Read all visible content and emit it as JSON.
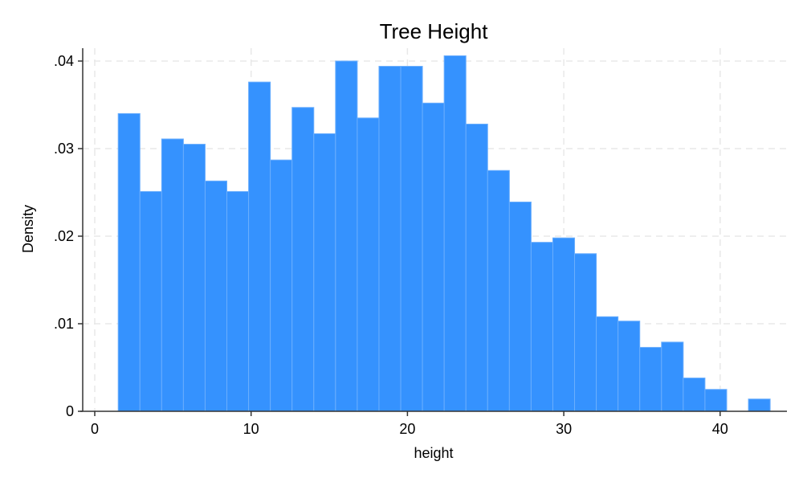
{
  "chart_data": {
    "type": "bar",
    "title": "Tree Height",
    "xlabel": "height",
    "ylabel": "Density",
    "xlim": [
      -0.7,
      44.3
    ],
    "ylim": [
      0,
      0.0415
    ],
    "xticks": [
      0,
      10,
      20,
      30,
      40
    ],
    "xtick_labels": [
      "0",
      "10",
      "20",
      "30",
      "40"
    ],
    "yticks": [
      0,
      0.01,
      0.02,
      0.03,
      0.04
    ],
    "ytick_labels": [
      "0",
      ".01",
      ".02",
      ".03",
      ".04"
    ],
    "grid": true,
    "bin_start": 1.5,
    "bin_width": 1.39,
    "values": [
      0.034,
      0.0251,
      0.0311,
      0.0305,
      0.0263,
      0.0251,
      0.0376,
      0.0287,
      0.0347,
      0.0317,
      0.04,
      0.0335,
      0.0394,
      0.0394,
      0.0352,
      0.0406,
      0.0328,
      0.0275,
      0.0239,
      0.0193,
      0.0198,
      0.018,
      0.0108,
      0.0103,
      0.0073,
      0.0079,
      0.0038,
      0.0025,
      0.0,
      0.0014
    ],
    "bar_color": "#3592fe",
    "bar_edge_color": "#6aaefd"
  }
}
